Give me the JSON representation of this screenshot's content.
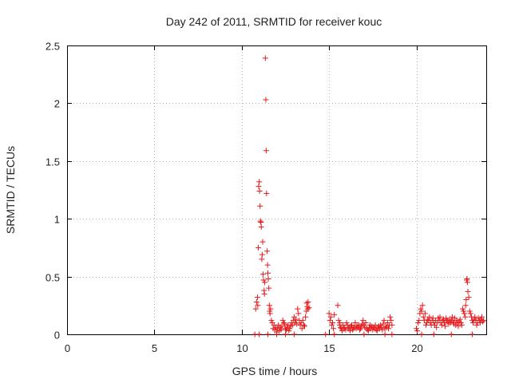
{
  "chart_data": {
    "type": "scatter",
    "title": "Day 242 of 2011, SRMTID for receiver kouc",
    "xlabel": "GPS time / hours",
    "ylabel": "SRMTID / TECUs",
    "xlim": [
      0,
      24
    ],
    "ylim": [
      0,
      2.5
    ],
    "xticks": [
      0,
      5,
      10,
      15,
      20
    ],
    "xtick_labels": [
      "0",
      "5",
      "10",
      "15",
      "20"
    ],
    "yticks": [
      0,
      0.5,
      1,
      1.5,
      2,
      2.5
    ],
    "ytick_labels": [
      "0",
      "0.5",
      "1",
      "1.5",
      "2",
      "2.5"
    ],
    "grid": true,
    "marker": "+",
    "color": "#e41a1c",
    "series": [
      {
        "name": "SRMTID",
        "x": [
          10.75,
          10.8,
          10.85,
          10.9,
          10.92,
          10.95,
          10.97,
          11.0,
          11.02,
          11.05,
          11.07,
          11.1,
          11.12,
          11.15,
          11.17,
          11.2,
          11.22,
          11.25,
          11.28,
          11.3,
          11.32,
          11.35,
          11.38,
          11.4,
          11.42,
          11.45,
          11.48,
          11.5,
          11.52,
          11.55,
          11.58,
          11.6,
          11.62,
          11.65,
          11.7,
          11.75,
          11.8,
          11.85,
          11.9,
          11.95,
          12.0,
          12.05,
          12.1,
          12.15,
          12.2,
          12.25,
          12.3,
          12.35,
          12.4,
          12.45,
          12.5,
          12.55,
          12.6,
          12.65,
          12.7,
          12.75,
          12.8,
          12.85,
          12.9,
          12.95,
          13.0,
          13.05,
          13.1,
          13.15,
          13.2,
          13.25,
          13.3,
          13.35,
          13.4,
          13.45,
          13.5,
          13.55,
          13.6,
          13.65,
          13.7,
          13.72,
          13.75,
          13.78,
          13.8,
          13.85,
          15.0,
          15.05,
          15.1,
          15.15,
          15.2,
          15.25,
          15.3,
          15.5,
          15.55,
          15.6,
          15.62,
          15.65,
          15.7,
          15.75,
          15.8,
          15.85,
          15.9,
          15.95,
          16.0,
          16.05,
          16.1,
          16.15,
          16.2,
          16.25,
          16.3,
          16.35,
          16.4,
          16.45,
          16.5,
          16.55,
          16.6,
          16.65,
          16.7,
          16.75,
          16.8,
          16.85,
          16.9,
          16.95,
          17.0,
          17.05,
          17.1,
          17.15,
          17.2,
          17.25,
          17.3,
          17.35,
          17.4,
          17.45,
          17.5,
          17.55,
          17.6,
          17.65,
          17.7,
          17.75,
          17.8,
          17.85,
          17.9,
          17.95,
          18.0,
          18.05,
          18.1,
          18.15,
          18.2,
          18.25,
          18.3,
          18.35,
          18.4,
          18.45,
          18.5,
          18.55,
          18.6,
          20.0,
          20.05,
          20.1,
          20.15,
          20.2,
          20.25,
          20.3,
          20.35,
          20.4,
          20.45,
          20.5,
          20.55,
          20.6,
          20.65,
          20.7,
          20.75,
          20.8,
          20.85,
          20.9,
          20.95,
          21.0,
          21.05,
          21.1,
          21.15,
          21.2,
          21.25,
          21.3,
          21.35,
          21.4,
          21.45,
          21.5,
          21.55,
          21.6,
          21.65,
          21.7,
          21.75,
          21.8,
          21.85,
          21.9,
          21.95,
          22.0,
          22.05,
          22.1,
          22.15,
          22.2,
          22.25,
          22.3,
          22.35,
          22.4,
          22.45,
          22.5,
          22.55,
          22.6,
          22.65,
          22.7,
          22.75,
          22.8,
          22.82,
          22.85,
          22.88,
          22.9,
          22.92,
          22.95,
          23.0,
          23.05,
          23.1,
          23.15,
          23.2,
          23.25,
          23.3,
          23.35,
          23.4,
          23.45,
          23.5,
          23.55,
          23.6,
          23.65,
          23.7,
          23.75,
          23.8,
          23.85,
          11.0,
          11.5,
          12.0,
          12.5,
          13.0,
          14.8,
          15.3,
          17.0,
          18.2,
          18.6,
          20.3,
          21.0,
          22.0,
          23.2
        ],
        "y": [
          0.0,
          0.22,
          0.28,
          0.32,
          0.25,
          0.75,
          1.28,
          1.32,
          1.24,
          1.11,
          0.98,
          0.97,
          0.93,
          0.65,
          0.69,
          0.8,
          0.52,
          0.47,
          0.38,
          0.35,
          0.45,
          2.39,
          2.03,
          1.59,
          1.22,
          0.72,
          0.6,
          0.53,
          0.48,
          0.4,
          0.25,
          0.2,
          0.18,
          0.22,
          0.12,
          0.1,
          0.05,
          0.08,
          0.04,
          0.06,
          0.02,
          0.05,
          0.08,
          0.03,
          0.06,
          0.04,
          0.07,
          0.12,
          0.1,
          0.09,
          0.05,
          0.04,
          0.06,
          0.08,
          0.03,
          0.05,
          0.07,
          0.1,
          0.08,
          0.12,
          0.15,
          0.1,
          0.13,
          0.09,
          0.22,
          0.18,
          0.12,
          0.08,
          0.1,
          0.05,
          0.12,
          0.08,
          0.07,
          0.15,
          0.2,
          0.27,
          0.24,
          0.22,
          0.28,
          0.23,
          0.18,
          0.12,
          0.15,
          0.08,
          0.1,
          0.05,
          0.17,
          0.25,
          0.12,
          0.08,
          0.1,
          0.06,
          0.05,
          0.03,
          0.08,
          0.05,
          0.06,
          0.04,
          0.1,
          0.08,
          0.05,
          0.06,
          0.03,
          0.07,
          0.08,
          0.04,
          0.05,
          0.06,
          0.1,
          0.05,
          0.07,
          0.06,
          0.08,
          0.04,
          0.05,
          0.07,
          0.09,
          0.12,
          0.08,
          0.06,
          0.1,
          0.05,
          0.04,
          0.03,
          0.06,
          0.08,
          0.05,
          0.07,
          0.04,
          0.06,
          0.05,
          0.08,
          0.04,
          0.03,
          0.06,
          0.07,
          0.05,
          0.08,
          0.06,
          0.04,
          0.09,
          0.12,
          0.05,
          0.07,
          0.06,
          0.1,
          0.05,
          0.08,
          0.15,
          0.12,
          0.08,
          0.05,
          0.03,
          0.1,
          0.12,
          0.18,
          0.22,
          0.2,
          0.25,
          0.15,
          0.12,
          0.18,
          0.08,
          0.1,
          0.13,
          0.12,
          0.15,
          0.1,
          0.08,
          0.12,
          0.14,
          0.1,
          0.08,
          0.12,
          0.06,
          0.1,
          0.14,
          0.12,
          0.15,
          0.1,
          0.08,
          0.12,
          0.13,
          0.1,
          0.07,
          0.14,
          0.12,
          0.11,
          0.09,
          0.13,
          0.1,
          0.12,
          0.15,
          0.11,
          0.09,
          0.14,
          0.08,
          0.12,
          0.1,
          0.07,
          0.11,
          0.13,
          0.1,
          0.08,
          0.22,
          0.2,
          0.18,
          0.15,
          0.25,
          0.3,
          0.47,
          0.48,
          0.45,
          0.37,
          0.32,
          0.2,
          0.18,
          0.15,
          0.12,
          0.1,
          0.13,
          0.15,
          0.12,
          0.08,
          0.1,
          0.14,
          0.12,
          0.1,
          0.13,
          0.15,
          0.11,
          0.12,
          0.0,
          0.0,
          0.0,
          0.0,
          0.0,
          0.0,
          0.0,
          0.0,
          0.0,
          0.0,
          0.0,
          0.0,
          0.0,
          0.0
        ]
      }
    ]
  }
}
